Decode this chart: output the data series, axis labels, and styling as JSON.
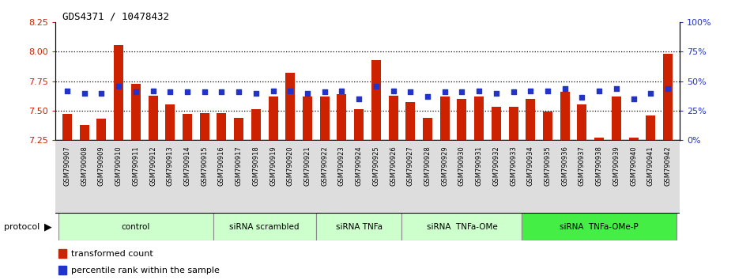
{
  "title": "GDS4371 / 10478432",
  "samples": [
    "GSM790907",
    "GSM790908",
    "GSM790909",
    "GSM790910",
    "GSM790911",
    "GSM790912",
    "GSM790913",
    "GSM790914",
    "GSM790915",
    "GSM790916",
    "GSM790917",
    "GSM790918",
    "GSM790919",
    "GSM790920",
    "GSM790921",
    "GSM790922",
    "GSM790923",
    "GSM790924",
    "GSM790925",
    "GSM790926",
    "GSM790927",
    "GSM790928",
    "GSM790929",
    "GSM790930",
    "GSM790931",
    "GSM790932",
    "GSM790933",
    "GSM790934",
    "GSM790935",
    "GSM790936",
    "GSM790937",
    "GSM790938",
    "GSM790939",
    "GSM790940",
    "GSM790941",
    "GSM790942"
  ],
  "transformed_count": [
    7.47,
    7.38,
    7.43,
    8.06,
    7.73,
    7.63,
    7.55,
    7.47,
    7.48,
    7.48,
    7.44,
    7.51,
    7.62,
    7.82,
    7.62,
    7.62,
    7.64,
    7.51,
    7.93,
    7.63,
    7.57,
    7.44,
    7.62,
    7.6,
    7.62,
    7.53,
    7.53,
    7.6,
    7.49,
    7.66,
    7.55,
    7.27,
    7.62,
    7.27,
    7.46,
    7.98
  ],
  "percentile_rank": [
    42,
    40,
    40,
    46,
    41,
    42,
    41,
    41,
    41,
    41,
    41,
    40,
    42,
    42,
    40,
    41,
    42,
    35,
    46,
    42,
    41,
    37,
    41,
    41,
    42,
    40,
    41,
    42,
    42,
    44,
    36,
    42,
    44,
    35,
    40,
    44
  ],
  "group_boundaries": [
    {
      "label": "control",
      "start": 0,
      "end": 8
    },
    {
      "label": "siRNA scrambled",
      "start": 9,
      "end": 14
    },
    {
      "label": "siRNA TNFa",
      "start": 15,
      "end": 19
    },
    {
      "label": "siRNA  TNFa-OMe",
      "start": 20,
      "end": 26
    },
    {
      "label": "siRNA  TNFa-OMe-P",
      "start": 27,
      "end": 35
    }
  ],
  "group_colors": [
    "#ccffcc",
    "#ccffcc",
    "#ccffcc",
    "#ccffcc",
    "#44ee44"
  ],
  "ylim_left": [
    7.25,
    8.25
  ],
  "ylim_right": [
    0,
    100
  ],
  "yticks_left": [
    7.25,
    7.5,
    7.75,
    8.0,
    8.25
  ],
  "yticks_right": [
    0,
    25,
    50,
    75,
    100
  ],
  "bar_color": "#cc2200",
  "dot_color": "#2233cc",
  "bar_bottom": 7.25,
  "bar_width": 0.55,
  "legend_labels": [
    "transformed count",
    "percentile rank within the sample"
  ]
}
